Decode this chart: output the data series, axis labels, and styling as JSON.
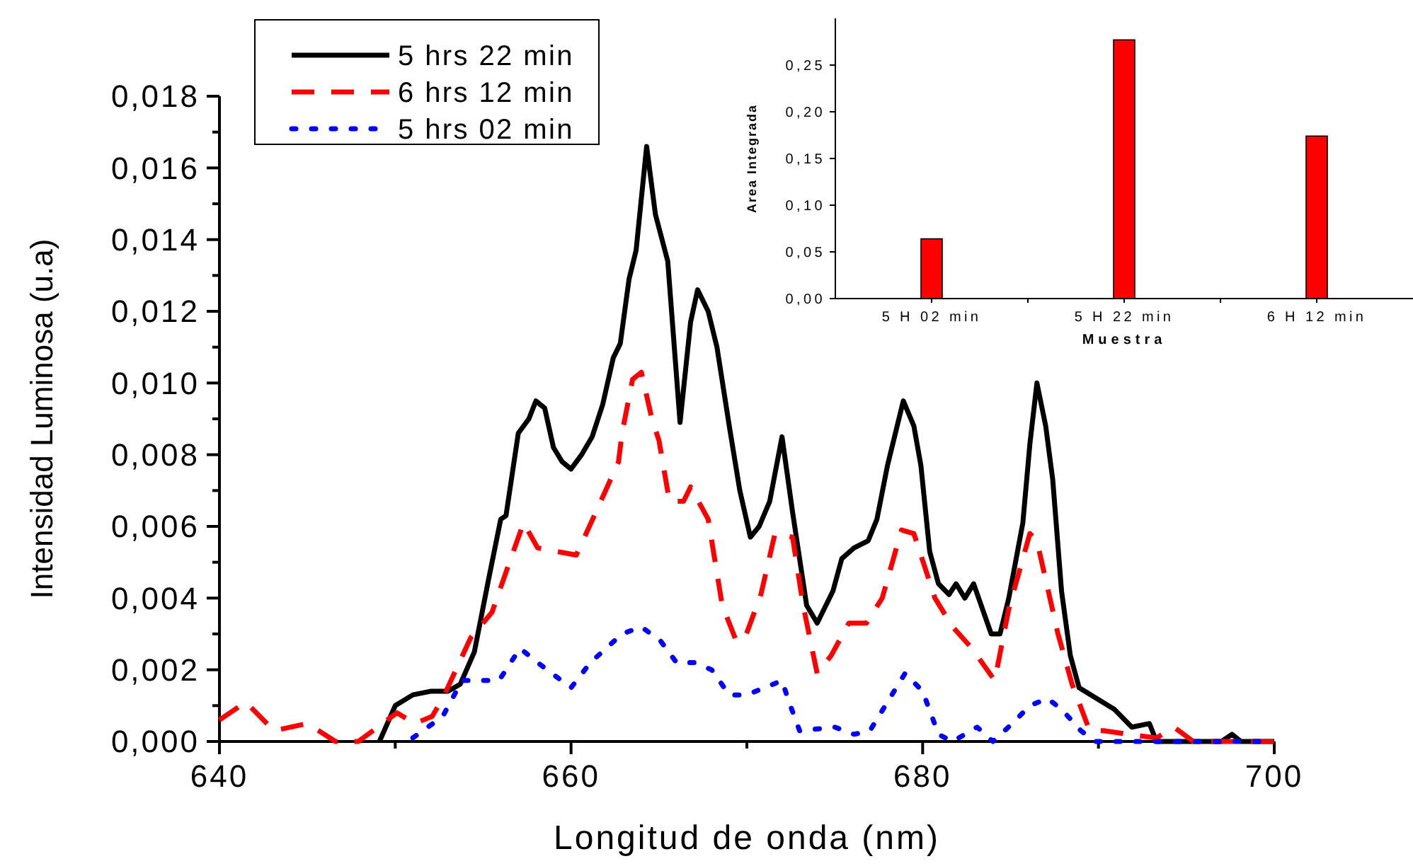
{
  "chart_data": [
    {
      "type": "line",
      "xlabel": "Longitud de onda (nm)",
      "ylabel": "Intensidad Luminosa (u.a)",
      "xlim": [
        640,
        700
      ],
      "ylim": [
        0,
        0.018
      ],
      "xticks": [
        640,
        {
          "value": 650,
          "label": null
        },
        660,
        {
          "value": 670,
          "label": null
        },
        680,
        {
          "value": 690,
          "label": null
        },
        700
      ],
      "yticks": [
        {
          "value": 0,
          "label": "0,000"
        },
        {
          "value": 0.001,
          "label": null
        },
        {
          "value": 0.002,
          "label": "0,002"
        },
        {
          "value": 0.003,
          "label": null
        },
        {
          "value": 0.004,
          "label": "0,004"
        },
        {
          "value": 0.005,
          "label": null
        },
        {
          "value": 0.006,
          "label": "0,006"
        },
        {
          "value": 0.007,
          "label": null
        },
        {
          "value": 0.008,
          "label": "0,008"
        },
        {
          "value": 0.009,
          "label": null
        },
        {
          "value": 0.01,
          "label": "0,010"
        },
        {
          "value": 0.011,
          "label": null
        },
        {
          "value": 0.012,
          "label": "0,012"
        },
        {
          "value": 0.013,
          "label": null
        },
        {
          "value": 0.014,
          "label": "0,014"
        },
        {
          "value": 0.015,
          "label": null
        },
        {
          "value": 0.016,
          "label": "0,016"
        },
        {
          "value": 0.017,
          "label": null
        },
        {
          "value": 0.018,
          "label": "0,018"
        }
      ],
      "grid": false,
      "legend": "top left",
      "marker": "none",
      "series": [
        {
          "name": "5 hrs 22 min",
          "color": "#000000",
          "line_style": "solid",
          "x": [
            649.1,
            650,
            651,
            652,
            653,
            653.7,
            654.5,
            655.3,
            656,
            656.3,
            657,
            657.6,
            658,
            658.5,
            659,
            659.5,
            660,
            660.6,
            661.2,
            661.8,
            662.4,
            662.8,
            663.3,
            663.7,
            664.3,
            664.8,
            665.5,
            666.2,
            666.8,
            667.2,
            667.8,
            668.3,
            669,
            669.6,
            670.2,
            670.7,
            671.3,
            672,
            672.6,
            673.4,
            674,
            674.9,
            675.4,
            676.1,
            676.9,
            677.4,
            678,
            678.9,
            679.5,
            679.9,
            680.4,
            680.9,
            681.5,
            681.9,
            682.4,
            682.9,
            683.9,
            684.4,
            684.9,
            685.7,
            686.1,
            686.5,
            687,
            687.4,
            687.9,
            688.4,
            688.9,
            689.9,
            690.9,
            691.9,
            692.9,
            693.3,
            697,
            697.6,
            698.1,
            700
          ],
          "values": [
            0,
            0.001,
            0.0013,
            0.0014,
            0.0014,
            0.0016,
            0.0025,
            0.0045,
            0.0062,
            0.0063,
            0.0086,
            0.009,
            0.0095,
            0.0093,
            0.0082,
            0.0078,
            0.0076,
            0.008,
            0.0085,
            0.0094,
            0.0107,
            0.0111,
            0.0129,
            0.0137,
            0.0166,
            0.0147,
            0.0134,
            0.0089,
            0.0117,
            0.0126,
            0.012,
            0.011,
            0.0088,
            0.007,
            0.0057,
            0.006,
            0.0067,
            0.0085,
            0.0064,
            0.0038,
            0.0033,
            0.0042,
            0.0051,
            0.0054,
            0.0056,
            0.0062,
            0.0077,
            0.0095,
            0.0088,
            0.0077,
            0.0053,
            0.0044,
            0.0041,
            0.0044,
            0.004,
            0.0044,
            0.003,
            0.003,
            0.004,
            0.0061,
            0.0083,
            0.01,
            0.0088,
            0.0073,
            0.0042,
            0.0024,
            0.0015,
            0.0012,
            0.0009,
            0.0004,
            0.0005,
            0,
            0,
            0.0002,
            0,
            0
          ]
        },
        {
          "name": "6 hrs 12 min",
          "color": "#ff0000",
          "line_style": "dashed",
          "x": [
            640,
            641.5,
            643.1,
            645,
            646.6,
            647.9,
            650.1,
            651.1,
            652.1,
            652.7,
            654.3,
            655.5,
            656.5,
            657.3,
            658.1,
            660.3,
            661.6,
            662.7,
            662.9,
            663.5,
            664,
            664.6,
            665,
            665.6,
            666.4,
            666.8,
            667.8,
            668.6,
            669.4,
            669.9,
            670.8,
            671.6,
            672.6,
            673.2,
            674,
            674.8,
            675.8,
            676.8,
            677.7,
            678.8,
            679.5,
            680.7,
            681.7,
            682.8,
            684.1,
            684.9,
            686.1,
            686.5,
            687.7,
            688.5,
            689.5,
            690.3,
            691.7,
            693.3,
            694.3,
            695.4,
            700
          ],
          "values": [
            0.0006,
            0.0011,
            0.0003,
            0.0005,
            0,
            0,
            0.0008,
            0.0005,
            0.0007,
            0.0012,
            0.0029,
            0.0036,
            0.005,
            0.0061,
            0.0054,
            0.0052,
            0.0066,
            0.0078,
            0.0086,
            0.0101,
            0.0103,
            0.009,
            0.0084,
            0.0067,
            0.0067,
            0.0071,
            0.0062,
            0.0038,
            0.0028,
            0.0029,
            0.0041,
            0.0058,
            0.0057,
            0.0038,
            0.0019,
            0.0024,
            0.0033,
            0.0033,
            0.004,
            0.0059,
            0.0058,
            0.004,
            0.0032,
            0.0026,
            0.0017,
            0.0037,
            0.0058,
            0.0056,
            0.003,
            0.0016,
            0.0003,
            0.0003,
            0.0002,
            0.0001,
            0.0004,
            0,
            0
          ]
        },
        {
          "name": "5 hrs 02 min",
          "color": "#0000ff",
          "line_style": "dotted",
          "x": [
            651,
            652.7,
            653.8,
            655.9,
            657.1,
            658.1,
            660,
            661.1,
            662.9,
            664,
            665.1,
            666,
            667,
            668,
            669,
            670,
            672,
            672.4,
            673,
            675,
            676.1,
            677,
            679,
            680,
            680.9,
            681.7,
            683.1,
            684,
            685.1,
            686.1,
            687.1,
            687.9,
            689,
            689.8,
            700
          ],
          "values": [
            0.0001,
            0.0007,
            0.0017,
            0.0017,
            0.0026,
            0.0022,
            0.0015,
            0.0022,
            0.003,
            0.0032,
            0.0028,
            0.0022,
            0.0022,
            0.002,
            0.0013,
            0.0013,
            0.0017,
            0.0011,
            0.0003,
            0.0004,
            0.0002,
            0.0003,
            0.0019,
            0.0014,
            0.0002,
            0,
            0.0004,
            0,
            0.0005,
            0.001,
            0.0012,
            0.0009,
            0.0003,
            0,
            0
          ]
        }
      ]
    },
    {
      "type": "bar",
      "xlabel": "Muestra",
      "ylabel": "Area Integrada",
      "categories": [
        "5 H 02 min",
        "5 H 22 min",
        "6 H 12 min"
      ],
      "values": [
        0.064,
        0.277,
        0.174
      ],
      "color": "#ff0000",
      "ylim": [
        0,
        0.3
      ],
      "yticks": [
        {
          "value": 0,
          "label": "0,00"
        },
        {
          "value": 0.05,
          "label": "0,05"
        },
        {
          "value": 0.1,
          "label": "0,10"
        },
        {
          "value": 0.15,
          "label": "0,15"
        },
        {
          "value": 0.2,
          "label": "0,20"
        },
        {
          "value": 0.25,
          "label": "0,25"
        }
      ],
      "grid": false
    }
  ]
}
